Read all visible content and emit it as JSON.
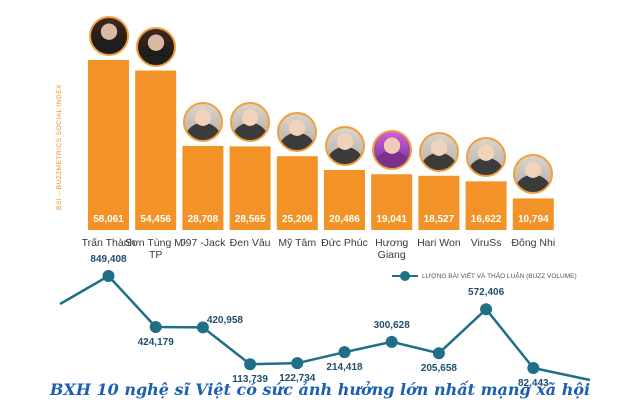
{
  "chart_data": {
    "type": "bar",
    "categories": [
      "Trấn Thành",
      "Sơn Tùng M-TP",
      "J97 -Jack",
      "Đen Vâu",
      "Mỹ Tâm",
      "Đức Phúc",
      "Hương Giang",
      "Hari Won",
      "ViruSs",
      "Đông Nhi"
    ],
    "series": [
      {
        "name": "BSI – BUZZMETRICS SOCIAL INDEX",
        "type": "bar",
        "values": [
          58061,
          54456,
          28708,
          28565,
          25206,
          20486,
          19041,
          18527,
          16622,
          10794
        ],
        "labels": [
          "58,061",
          "54,456",
          "28,708",
          "28,565",
          "25,206",
          "20,486",
          "19,041",
          "18,527",
          "16,622",
          "10,794"
        ],
        "color": "#f39226"
      },
      {
        "name": "LƯỢNG BÀI VIẾT VÀ THẢO LUẬN (BUZZ VOLUME)",
        "type": "line",
        "values": [
          849408,
          424179,
          420958,
          113739,
          122734,
          214418,
          300628,
          205658,
          572406,
          82443
        ],
        "labels": [
          "849,408",
          "424,179",
          "420,958",
          "113,739",
          "122,734",
          "214,418",
          "300,628",
          "205,658",
          "572,406",
          "82,443"
        ],
        "color": "#1f6f86"
      }
    ],
    "ylabel": "BSI – BUZZMETRICS SOCIAL INDEX",
    "grid": false,
    "legend_position": "right"
  },
  "avatar_icons": [
    "person-photo-icon",
    "person-photo-icon",
    "person-photo-icon",
    "person-photo-icon",
    "person-photo-icon",
    "person-photo-icon",
    "person-photo-icon",
    "person-photo-icon",
    "person-photo-icon",
    "person-photo-icon"
  ],
  "caption": "BXH 10 nghệ sĩ Việt có sức ảnh hưởng lớn nhất mạng xã hội"
}
